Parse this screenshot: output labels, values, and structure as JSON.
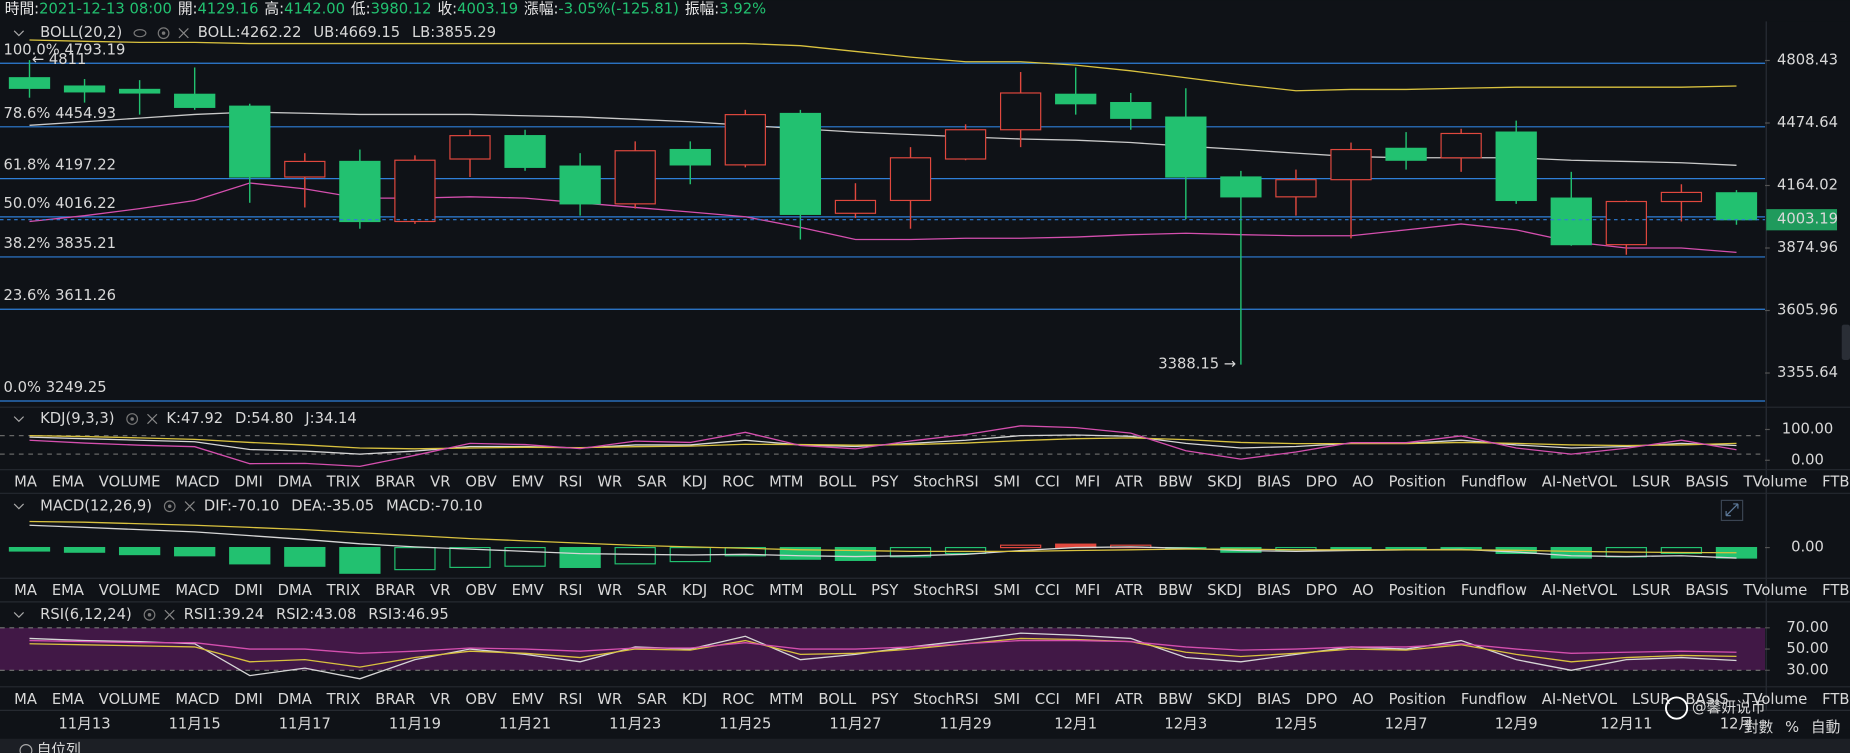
{
  "header": {
    "items": [
      {
        "label": "時間:",
        "value": "2021-12-13 08:00"
      },
      {
        "label": "開:",
        "value": "4129.16"
      },
      {
        "label": "高:",
        "value": "4142.00"
      },
      {
        "label": "低:",
        "value": "3980.12"
      },
      {
        "label": "收:",
        "value": "4003.19"
      },
      {
        "label": "漲幅:",
        "value": "-3.05%(-125.81)"
      },
      {
        "label": "振幅:",
        "value": "3.92%"
      }
    ]
  },
  "chart_data": [
    {
      "type": "candlestick",
      "title": "BOLL(20,2)",
      "log": true,
      "categories": [
        null,
        "11月13",
        null,
        "11月15",
        null,
        "11月17",
        null,
        "11月19",
        null,
        "11月21",
        null,
        "11月23",
        null,
        "11月25",
        null,
        "11月27",
        null,
        "11月29",
        null,
        "12月1",
        null,
        "12月3",
        null,
        "12月5",
        null,
        "12月7",
        null,
        "12月9",
        null,
        "12月11",
        null,
        "12月"
      ],
      "open": [
        4714,
        4669,
        4651,
        4625,
        4562,
        4205,
        4281,
        3995,
        4293,
        4410,
        4258,
        4077,
        4340,
        4264,
        4524,
        4033,
        4093,
        4293,
        4440,
        4625,
        4581,
        4505,
        4205,
        4110,
        4192,
        4346,
        4299,
        4428,
        4104,
        3890,
        4088,
        4129.16
      ],
      "high": [
        4811,
        4707,
        4701,
        4770,
        4575,
        4322,
        4340,
        4311,
        4440,
        4440,
        4322,
        4381,
        4381,
        4543,
        4543,
        4175,
        4352,
        4468,
        4745,
        4770,
        4632,
        4657,
        4235,
        4241,
        4375,
        4428,
        4445,
        4487,
        4230,
        4093,
        4170,
        4142
      ],
      "low": [
        4607,
        4581,
        4518,
        4543,
        4082,
        4060,
        3962,
        3984,
        4205,
        4235,
        4022,
        4055,
        4170,
        4252,
        3913,
        4011,
        3962,
        4287,
        4352,
        4518,
        4440,
        4006,
        3388.15,
        4022,
        3918,
        4241,
        4230,
        4077,
        3885,
        3845,
        3995,
        3980.12
      ],
      "close": [
        4657,
        4638,
        4632,
        4556,
        4205,
        4281,
        3995,
        4287,
        4410,
        4252,
        4077,
        4334,
        4264,
        4518,
        4028,
        4093,
        4299,
        4440,
        4632,
        4575,
        4499,
        4205,
        4110,
        4192,
        4340,
        4287,
        4421,
        4093,
        3890,
        4088,
        4131,
        4003.19
      ],
      "up_color": "#e0483e",
      "down_color": "#22c170",
      "series": [
        {
          "name": "BOLL:4262.22",
          "color": "#c9c9c9",
          "values": [
            4463,
            4481,
            4500,
            4519,
            4531,
            4525,
            4519,
            4519,
            4519,
            4512,
            4506,
            4494,
            4481,
            4463,
            4445,
            4428,
            4416,
            4404,
            4393,
            4387,
            4375,
            4357,
            4340,
            4322,
            4305,
            4299,
            4299,
            4299,
            4287,
            4281,
            4275,
            4262.22
          ]
        },
        {
          "name": "UB:4669.15",
          "color": "#d9c23f",
          "values": [
            4923,
            4916,
            4910,
            4910,
            4903,
            4903,
            4903,
            4903,
            4903,
            4903,
            4903,
            4903,
            4903,
            4903,
            4891,
            4859,
            4827,
            4802,
            4802,
            4783,
            4752,
            4714,
            4676,
            4644,
            4651,
            4651,
            4657,
            4663,
            4663,
            4663,
            4663,
            4669.15
          ]
        },
        {
          "name": "LB:3855.29",
          "color": "#d44fae",
          "values": [
            3995,
            4022,
            4055,
            4093,
            4176,
            4148,
            4104,
            4104,
            4110,
            4104,
            4082,
            4060,
            4039,
            4017,
            3968,
            3913,
            3913,
            3919,
            3919,
            3924,
            3935,
            3941,
            3935,
            3930,
            3930,
            3957,
            3984,
            3957,
            3903,
            3875,
            3875,
            3855.29
          ]
        }
      ],
      "ylim": [
        3235,
        5030
      ],
      "yticks": [
        4808.43,
        4474.64,
        4164.02,
        3874.96,
        3605.96,
        3355.64
      ],
      "fib_color": "#2f7fd8",
      "fib_levels": [
        {
          "label": "100.0%",
          "value": 4793.19
        },
        {
          "label": "78.6%",
          "value": 4454.93
        },
        {
          "label": "61.8%",
          "value": 4197.22
        },
        {
          "label": "50.0%",
          "value": 4016.22
        },
        {
          "label": "38.2%",
          "value": 3835.21
        },
        {
          "label": "23.6%",
          "value": 3611.26
        },
        {
          "label": "0.0%",
          "value": 3249.25
        }
      ],
      "annotations": [
        {
          "text": "← 4811",
          "value": 4811
        },
        {
          "text": "3388.15 →",
          "value": 3388.15
        }
      ]
    },
    {
      "type": "line",
      "title": "KDJ(9,3,3)",
      "series": [
        {
          "name": "K:47.92",
          "color": "#d6d6d6",
          "values": [
            75,
            70,
            65,
            60,
            35,
            30,
            20,
            30,
            45,
            45,
            40,
            50,
            50,
            65,
            50,
            45,
            55,
            65,
            80,
            82,
            78,
            55,
            40,
            45,
            55,
            55,
            65,
            50,
            40,
            45,
            55,
            47.92
          ]
        },
        {
          "name": "D:54.80",
          "color": "#d9c23f",
          "values": [
            80,
            77,
            73,
            68,
            58,
            50,
            40,
            37,
            40,
            42,
            41,
            44,
            46,
            52,
            51,
            49,
            51,
            56,
            64,
            70,
            73,
            67,
            58,
            54,
            54,
            54,
            58,
            55,
            50,
            48,
            50,
            54.8
          ]
        },
        {
          "name": "J:34.14",
          "color": "#d44fae",
          "values": [
            65,
            56,
            49,
            44,
            -11,
            -10,
            -20,
            16,
            55,
            51,
            38,
            62,
            58,
            91,
            48,
            37,
            63,
            83,
            112,
            106,
            88,
            31,
            4,
            27,
            57,
            57,
            79,
            40,
            20,
            39,
            65,
            34.14
          ]
        }
      ],
      "ylim": [
        -23,
        115
      ],
      "yticks": [
        {
          "value": 100,
          "label": "100.00"
        },
        {
          "value": 0,
          "label": "0.00"
        }
      ],
      "guides": [
        80,
        20
      ]
    },
    {
      "type": "bar",
      "title": "MACD(12,26,9)",
      "name": "MACD:-70.10",
      "name_color": "#e060c0",
      "up_color": "#e0483e",
      "down_color": "#22c170",
      "values": [
        -23,
        -31,
        -47,
        -55,
        -109,
        -125,
        -172,
        -148,
        -133,
        -125,
        -133,
        -109,
        -94,
        -55,
        -78,
        -86,
        -62,
        -39,
        16,
        23,
        16,
        -8,
        -31,
        -16,
        -16,
        -8,
        -4,
        -39,
        -70,
        -62,
        -39,
        -70.1
      ],
      "series": [
        {
          "name": "DIF:-70.10",
          "color": "#d6d6d6",
          "values": [
            150,
            135,
            120,
            105,
            80,
            55,
            25,
            5,
            -10,
            -25,
            -40,
            -45,
            -50,
            -45,
            -55,
            -60,
            -55,
            -45,
            -20,
            0,
            5,
            -5,
            -20,
            -25,
            -20,
            -15,
            -12,
            -30,
            -55,
            -60,
            -55,
            -70.1
          ]
        },
        {
          "name": "DEA:-35.05",
          "color": "#d9c23f",
          "values": [
            175,
            170,
            160,
            150,
            135,
            120,
            100,
            80,
            60,
            45,
            30,
            15,
            5,
            -5,
            -15,
            -20,
            -25,
            -25,
            -25,
            -20,
            -15,
            -10,
            -10,
            -15,
            -15,
            -15,
            -15,
            -18,
            -25,
            -30,
            -33,
            -35.05
          ]
        }
      ],
      "ylim": [
        -190,
        190
      ],
      "yticks": [
        {
          "value": 0,
          "label": "0.00"
        }
      ]
    },
    {
      "type": "line",
      "title": "RSI(6,12,24)",
      "band_color": "#4a1a4f",
      "series": [
        {
          "name": "RSI1:39.24",
          "color": "#d6d6d6",
          "values": [
            60,
            58,
            57,
            55,
            25,
            32,
            22,
            40,
            50,
            45,
            38,
            52,
            50,
            62,
            40,
            45,
            52,
            58,
            65,
            63,
            60,
            42,
            38,
            45,
            52,
            50,
            58,
            40,
            30,
            40,
            42,
            39.24
          ]
        },
        {
          "name": "RSI2:43.08",
          "color": "#d9c23f",
          "values": [
            55,
            54,
            53,
            52,
            38,
            40,
            33,
            42,
            48,
            46,
            42,
            50,
            49,
            58,
            45,
            46,
            50,
            55,
            60,
            59,
            57,
            47,
            43,
            46,
            50,
            49,
            54,
            45,
            38,
            42,
            44,
            43.08
          ]
        },
        {
          "name": "RSI3:46.95",
          "color": "#d44fae",
          "values": [
            58,
            57,
            56,
            56,
            50,
            50,
            46,
            48,
            51,
            50,
            48,
            51,
            51,
            56,
            50,
            50,
            52,
            55,
            58,
            58,
            57,
            52,
            49,
            50,
            52,
            52,
            55,
            50,
            46,
            47,
            48,
            46.95
          ]
        }
      ],
      "ylim": [
        15,
        73
      ],
      "yticks": [
        {
          "value": 70,
          "label": "70.00"
        },
        {
          "value": 50,
          "label": "50.00"
        },
        {
          "value": 30,
          "label": "30.00"
        }
      ]
    }
  ],
  "indicator_tabs": {
    "names": [
      "MA",
      "EMA",
      "VOLUME",
      "MACD",
      "DMI",
      "DMA",
      "TRIX",
      "BRAR",
      "VR",
      "OBV",
      "EMV",
      "RSI",
      "WR",
      "SAR",
      "KDJ",
      "ROC",
      "MTM",
      "BOLL",
      "PSY",
      "StochRSI",
      "SMI",
      "CCI",
      "MFI",
      "ATR",
      "BBW",
      "SKDJ",
      "BIAS",
      "DPO",
      "AO",
      "Position",
      "Fundflow",
      "AI-NetVOL",
      "LSUR",
      "BASIS",
      "TVolume",
      "FTBS"
    ],
    "rows": [
      {
        "active": "KDJ",
        "dimmed": [
          "MACD",
          "RSI",
          "AI-NetVOL"
        ]
      },
      {
        "active": "MACD",
        "dimmed": [
          "RSI",
          "KDJ",
          "AI-NetVOL"
        ]
      },
      {
        "active": "RSI",
        "dimmed": [
          "MACD",
          "KDJ",
          "AI-NetVOL"
        ]
      }
    ]
  },
  "watermark": "@馨妍说币",
  "scale_controls": [
    "對數",
    "%",
    "自動"
  ],
  "footer": "自位列"
}
